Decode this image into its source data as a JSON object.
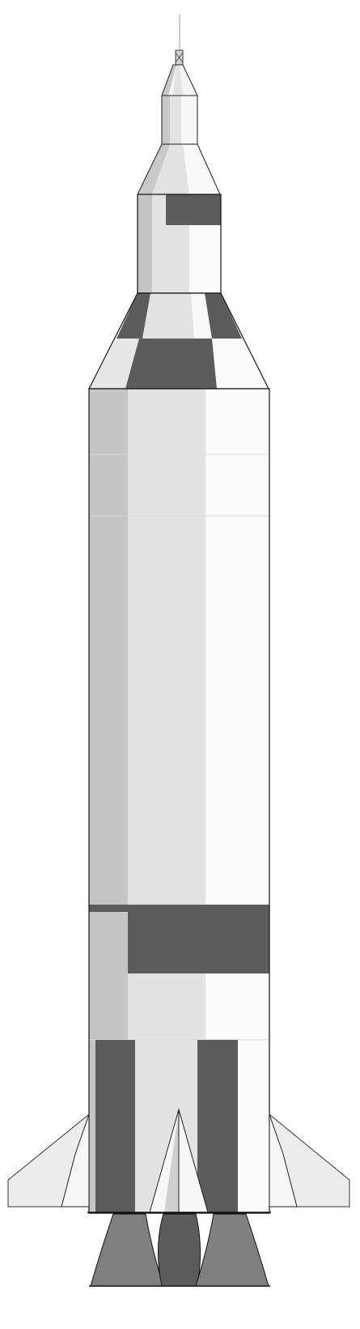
{
  "illustration": {
    "subject": "rocket-launch-vehicle",
    "palette": {
      "background": "#ffffff",
      "body_light": "#fafafa",
      "body_mid": "#e2e2e2",
      "body_shade": "#c4c4c4",
      "marking_dark": "#5c5c5c",
      "nozzle": "#808080",
      "outline": "#111111"
    }
  }
}
